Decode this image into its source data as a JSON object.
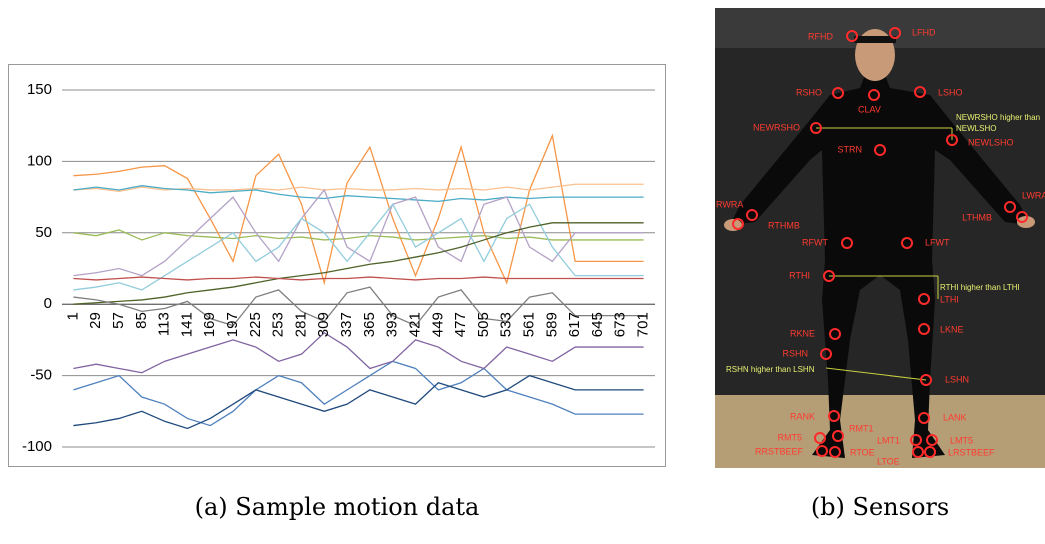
{
  "chart_data": {
    "type": "line",
    "categories": [
      "1",
      "29",
      "57",
      "85",
      "113",
      "141",
      "169",
      "197",
      "225",
      "253",
      "281",
      "309",
      "337",
      "365",
      "393",
      "421",
      "449",
      "477",
      "505",
      "533",
      "561",
      "589",
      "617",
      "645",
      "673",
      "701"
    ],
    "ylim": [
      -100,
      150
    ],
    "yticks": [
      -100,
      -50,
      0,
      50,
      100,
      150
    ],
    "grid": true,
    "series": [
      {
        "color": "#f79646",
        "values": [
          90,
          91,
          93,
          96,
          97,
          88,
          60,
          30,
          90,
          105,
          70,
          15,
          85,
          110,
          60,
          20,
          60,
          110,
          50,
          15,
          80,
          118,
          30,
          30,
          30,
          30
        ]
      },
      {
        "color": "#fac090",
        "values": [
          80,
          81,
          79,
          82,
          80,
          81,
          80,
          80,
          81,
          80,
          82,
          80,
          81,
          80,
          80,
          81,
          80,
          81,
          80,
          82,
          80,
          82,
          84,
          84,
          84,
          84
        ]
      },
      {
        "color": "#4bacc6",
        "values": [
          80,
          82,
          80,
          83,
          81,
          80,
          78,
          79,
          80,
          77,
          75,
          74,
          76,
          75,
          74,
          73,
          72,
          74,
          73,
          75,
          74,
          75,
          75,
          75,
          75,
          75
        ]
      },
      {
        "color": "#9bbb59",
        "values": [
          50,
          48,
          52,
          45,
          50,
          48,
          47,
          46,
          48,
          46,
          47,
          45,
          46,
          48,
          47,
          45,
          46,
          47,
          48,
          46,
          47,
          45,
          45,
          45,
          45,
          45
        ]
      },
      {
        "color": "#4f81bd",
        "values": [
          -60,
          -55,
          -50,
          -65,
          -70,
          -80,
          -85,
          -75,
          -60,
          -50,
          -55,
          -70,
          -60,
          -50,
          -40,
          -45,
          -60,
          -55,
          -45,
          -60,
          -65,
          -70,
          -77,
          -77,
          -77,
          -77
        ]
      },
      {
        "color": "#1f497d",
        "values": [
          -85,
          -83,
          -80,
          -75,
          -82,
          -87,
          -80,
          -70,
          -60,
          -65,
          -70,
          -75,
          -70,
          -60,
          -65,
          -70,
          -55,
          -60,
          -65,
          -60,
          -50,
          -55,
          -60,
          -60,
          -60,
          -60
        ]
      },
      {
        "color": "#8064a2",
        "values": [
          -45,
          -42,
          -45,
          -48,
          -40,
          -35,
          -30,
          -25,
          -30,
          -40,
          -35,
          -20,
          -30,
          -45,
          -40,
          -25,
          -30,
          -40,
          -45,
          -30,
          -35,
          -40,
          -30,
          -30,
          -30,
          -30
        ]
      },
      {
        "color": "#b3a2c7",
        "values": [
          20,
          22,
          25,
          20,
          30,
          45,
          60,
          75,
          50,
          30,
          60,
          80,
          40,
          30,
          70,
          75,
          40,
          30,
          70,
          75,
          40,
          30,
          50,
          50,
          50,
          50
        ]
      },
      {
        "color": "#93cddd",
        "values": [
          10,
          12,
          15,
          10,
          20,
          30,
          40,
          50,
          30,
          40,
          60,
          50,
          30,
          50,
          70,
          40,
          50,
          60,
          30,
          60,
          70,
          40,
          20,
          20,
          20,
          20
        ]
      },
      {
        "color": "#4f6228",
        "values": [
          0,
          1,
          2,
          3,
          5,
          8,
          10,
          12,
          15,
          18,
          20,
          22,
          25,
          28,
          30,
          33,
          36,
          40,
          45,
          50,
          54,
          57,
          57,
          57,
          57,
          57
        ]
      },
      {
        "color": "#c0504d",
        "values": [
          18,
          17,
          18,
          19,
          18,
          17,
          18,
          18,
          19,
          18,
          17,
          18,
          18,
          19,
          18,
          17,
          18,
          18,
          19,
          18,
          18,
          18,
          18,
          18,
          18,
          18
        ]
      },
      {
        "color": "#7f7f7f",
        "values": [
          5,
          3,
          0,
          -5,
          -3,
          2,
          -10,
          -15,
          5,
          10,
          -5,
          -12,
          8,
          12,
          -8,
          -15,
          5,
          10,
          -10,
          -12,
          5,
          8,
          -8,
          -8,
          -8,
          -8
        ]
      }
    ]
  },
  "captions": [
    "(a) Sample motion data",
    "(b) Sensors"
  ],
  "sensors": [
    "RFHD",
    "LFHD",
    "RSHO",
    "CLAV",
    "LSHO",
    "NEWRSHO",
    "NEWLSHO",
    "STRN",
    "RWRA",
    "RTHMB",
    "RFWT",
    "LFWT",
    "LWRA",
    "LTHMB",
    "RTHI",
    "LTHI",
    "RKNE",
    "LKNE",
    "RSHN",
    "LSHN",
    "RANK",
    "LANK",
    "RMT1",
    "RMT5",
    "RRSTBEEF",
    "RTOE",
    "LMT1",
    "LMT5",
    "LTOE",
    "LRSTBEEF"
  ],
  "annotations": [
    "NEWRSHO higher than",
    "NEWLSHO",
    "RTHI higher than LTHI",
    "RSHN higher than LSHN"
  ]
}
